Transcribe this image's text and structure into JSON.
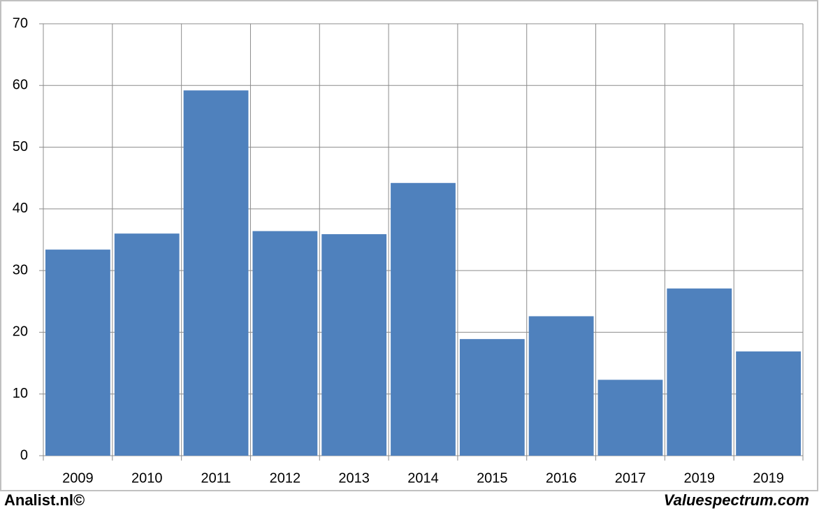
{
  "chart_data": {
    "type": "bar",
    "categories": [
      "2009",
      "2010",
      "2011",
      "2012",
      "2013",
      "2014",
      "2015",
      "2016",
      "2017",
      "2019",
      "2019"
    ],
    "values": [
      33.4,
      36,
      59.2,
      36.4,
      35.9,
      44.2,
      18.9,
      22.6,
      12.3,
      27.1,
      16.9
    ],
    "color": "#4f81bd",
    "ylim": [
      0,
      70
    ],
    "yticks": [
      0,
      10,
      20,
      30,
      40,
      50,
      60,
      70
    ],
    "grid": true,
    "source": "Analist.nl©",
    "credit": "Valuespectrum.com"
  }
}
